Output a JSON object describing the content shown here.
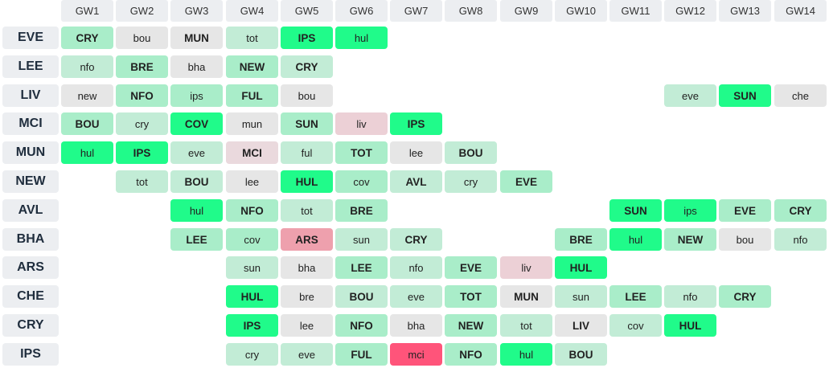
{
  "gameweeks": [
    "GW1",
    "GW2",
    "GW3",
    "GW4",
    "GW5",
    "GW6",
    "GW7",
    "GW8",
    "GW9",
    "GW10",
    "GW11",
    "GW12",
    "GW13",
    "GW14"
  ],
  "colors": {
    "1": "#20fb8a",
    "2": "#a9edc9",
    "3": "#c2ecd6",
    "4": "#e6e6e6",
    "5": "#ead9dd",
    "6": "#ecd0d6",
    "7": "#eea0ad",
    "8": "#ff547a"
  },
  "rows": [
    {
      "team": "EVE",
      "fixtures": [
        [
          "CRY",
          2
        ],
        [
          "bou",
          4
        ],
        [
          "MUN",
          4
        ],
        [
          "tot",
          3
        ],
        [
          "IPS",
          1
        ],
        [
          "hul",
          1
        ],
        null,
        null,
        null,
        null,
        null,
        null,
        null,
        null
      ]
    },
    {
      "team": "LEE",
      "fixtures": [
        [
          "nfo",
          3
        ],
        [
          "BRE",
          2
        ],
        [
          "bha",
          4
        ],
        [
          "NEW",
          2
        ],
        [
          "CRY",
          3
        ],
        null,
        null,
        null,
        null,
        null,
        null,
        null,
        null,
        null
      ]
    },
    {
      "team": "LIV",
      "fixtures": [
        [
          "new",
          4
        ],
        [
          "NFO",
          2
        ],
        [
          "ips",
          2
        ],
        [
          "FUL",
          2
        ],
        [
          "bou",
          4
        ],
        null,
        null,
        null,
        null,
        null,
        null,
        [
          "eve",
          3
        ],
        [
          "SUN",
          1
        ],
        [
          "che",
          4
        ]
      ]
    },
    {
      "team": "MCI",
      "fixtures": [
        [
          "BOU",
          2
        ],
        [
          "cry",
          3
        ],
        [
          "COV",
          1
        ],
        [
          "mun",
          4
        ],
        [
          "SUN",
          2
        ],
        [
          "liv",
          6
        ],
        [
          "IPS",
          1
        ],
        null,
        null,
        null,
        null,
        null,
        null,
        null
      ]
    },
    {
      "team": "MUN",
      "fixtures": [
        [
          "hul",
          1
        ],
        [
          "IPS",
          1
        ],
        [
          "eve",
          3
        ],
        [
          "MCI",
          5
        ],
        [
          "ful",
          3
        ],
        [
          "TOT",
          2
        ],
        [
          "lee",
          4
        ],
        [
          "BOU",
          3
        ],
        null,
        null,
        null,
        null,
        null,
        null
      ]
    },
    {
      "team": "NEW",
      "fixtures": [
        null,
        [
          "tot",
          3
        ],
        [
          "BOU",
          3
        ],
        [
          "lee",
          4
        ],
        [
          "HUL",
          1
        ],
        [
          "cov",
          2
        ],
        [
          "AVL",
          3
        ],
        [
          "cry",
          3
        ],
        [
          "EVE",
          2
        ],
        null,
        null,
        null,
        null,
        null
      ]
    },
    {
      "team": "AVL",
      "fixtures": [
        null,
        null,
        [
          "hul",
          1
        ],
        [
          "NFO",
          2
        ],
        [
          "tot",
          3
        ],
        [
          "BRE",
          2
        ],
        null,
        null,
        null,
        null,
        [
          "SUN",
          1
        ],
        [
          "ips",
          1
        ],
        [
          "EVE",
          2
        ],
        [
          "CRY",
          2
        ]
      ]
    },
    {
      "team": "BHA",
      "fixtures": [
        null,
        null,
        [
          "LEE",
          2
        ],
        [
          "cov",
          2
        ],
        [
          "ARS",
          7
        ],
        [
          "sun",
          3
        ],
        [
          "CRY",
          3
        ],
        null,
        null,
        [
          "BRE",
          2
        ],
        [
          "hul",
          1
        ],
        [
          "NEW",
          2
        ],
        [
          "bou",
          4
        ],
        [
          "nfo",
          3
        ]
      ]
    },
    {
      "team": "ARS",
      "fixtures": [
        null,
        null,
        null,
        [
          "sun",
          3
        ],
        [
          "bha",
          4
        ],
        [
          "LEE",
          2
        ],
        [
          "nfo",
          3
        ],
        [
          "EVE",
          2
        ],
        [
          "liv",
          6
        ],
        [
          "HUL",
          1
        ],
        null,
        null,
        null,
        null
      ]
    },
    {
      "team": "CHE",
      "fixtures": [
        null,
        null,
        null,
        [
          "HUL",
          1
        ],
        [
          "bre",
          4
        ],
        [
          "BOU",
          3
        ],
        [
          "eve",
          3
        ],
        [
          "TOT",
          2
        ],
        [
          "MUN",
          4
        ],
        [
          "sun",
          3
        ],
        [
          "LEE",
          2
        ],
        [
          "nfo",
          3
        ],
        [
          "CRY",
          2
        ],
        null
      ]
    },
    {
      "team": "CRY",
      "fixtures": [
        null,
        null,
        null,
        [
          "IPS",
          1
        ],
        [
          "lee",
          4
        ],
        [
          "NFO",
          2
        ],
        [
          "bha",
          4
        ],
        [
          "NEW",
          2
        ],
        [
          "tot",
          3
        ],
        [
          "LIV",
          4
        ],
        [
          "cov",
          3
        ],
        [
          "HUL",
          1
        ],
        null,
        null
      ]
    },
    {
      "team": "IPS",
      "fixtures": [
        null,
        null,
        null,
        [
          "cry",
          3
        ],
        [
          "eve",
          3
        ],
        [
          "FUL",
          2
        ],
        [
          "mci",
          8
        ],
        [
          "NFO",
          2
        ],
        [
          "hul",
          1
        ],
        [
          "BOU",
          3
        ],
        null,
        null,
        null,
        null
      ]
    }
  ]
}
